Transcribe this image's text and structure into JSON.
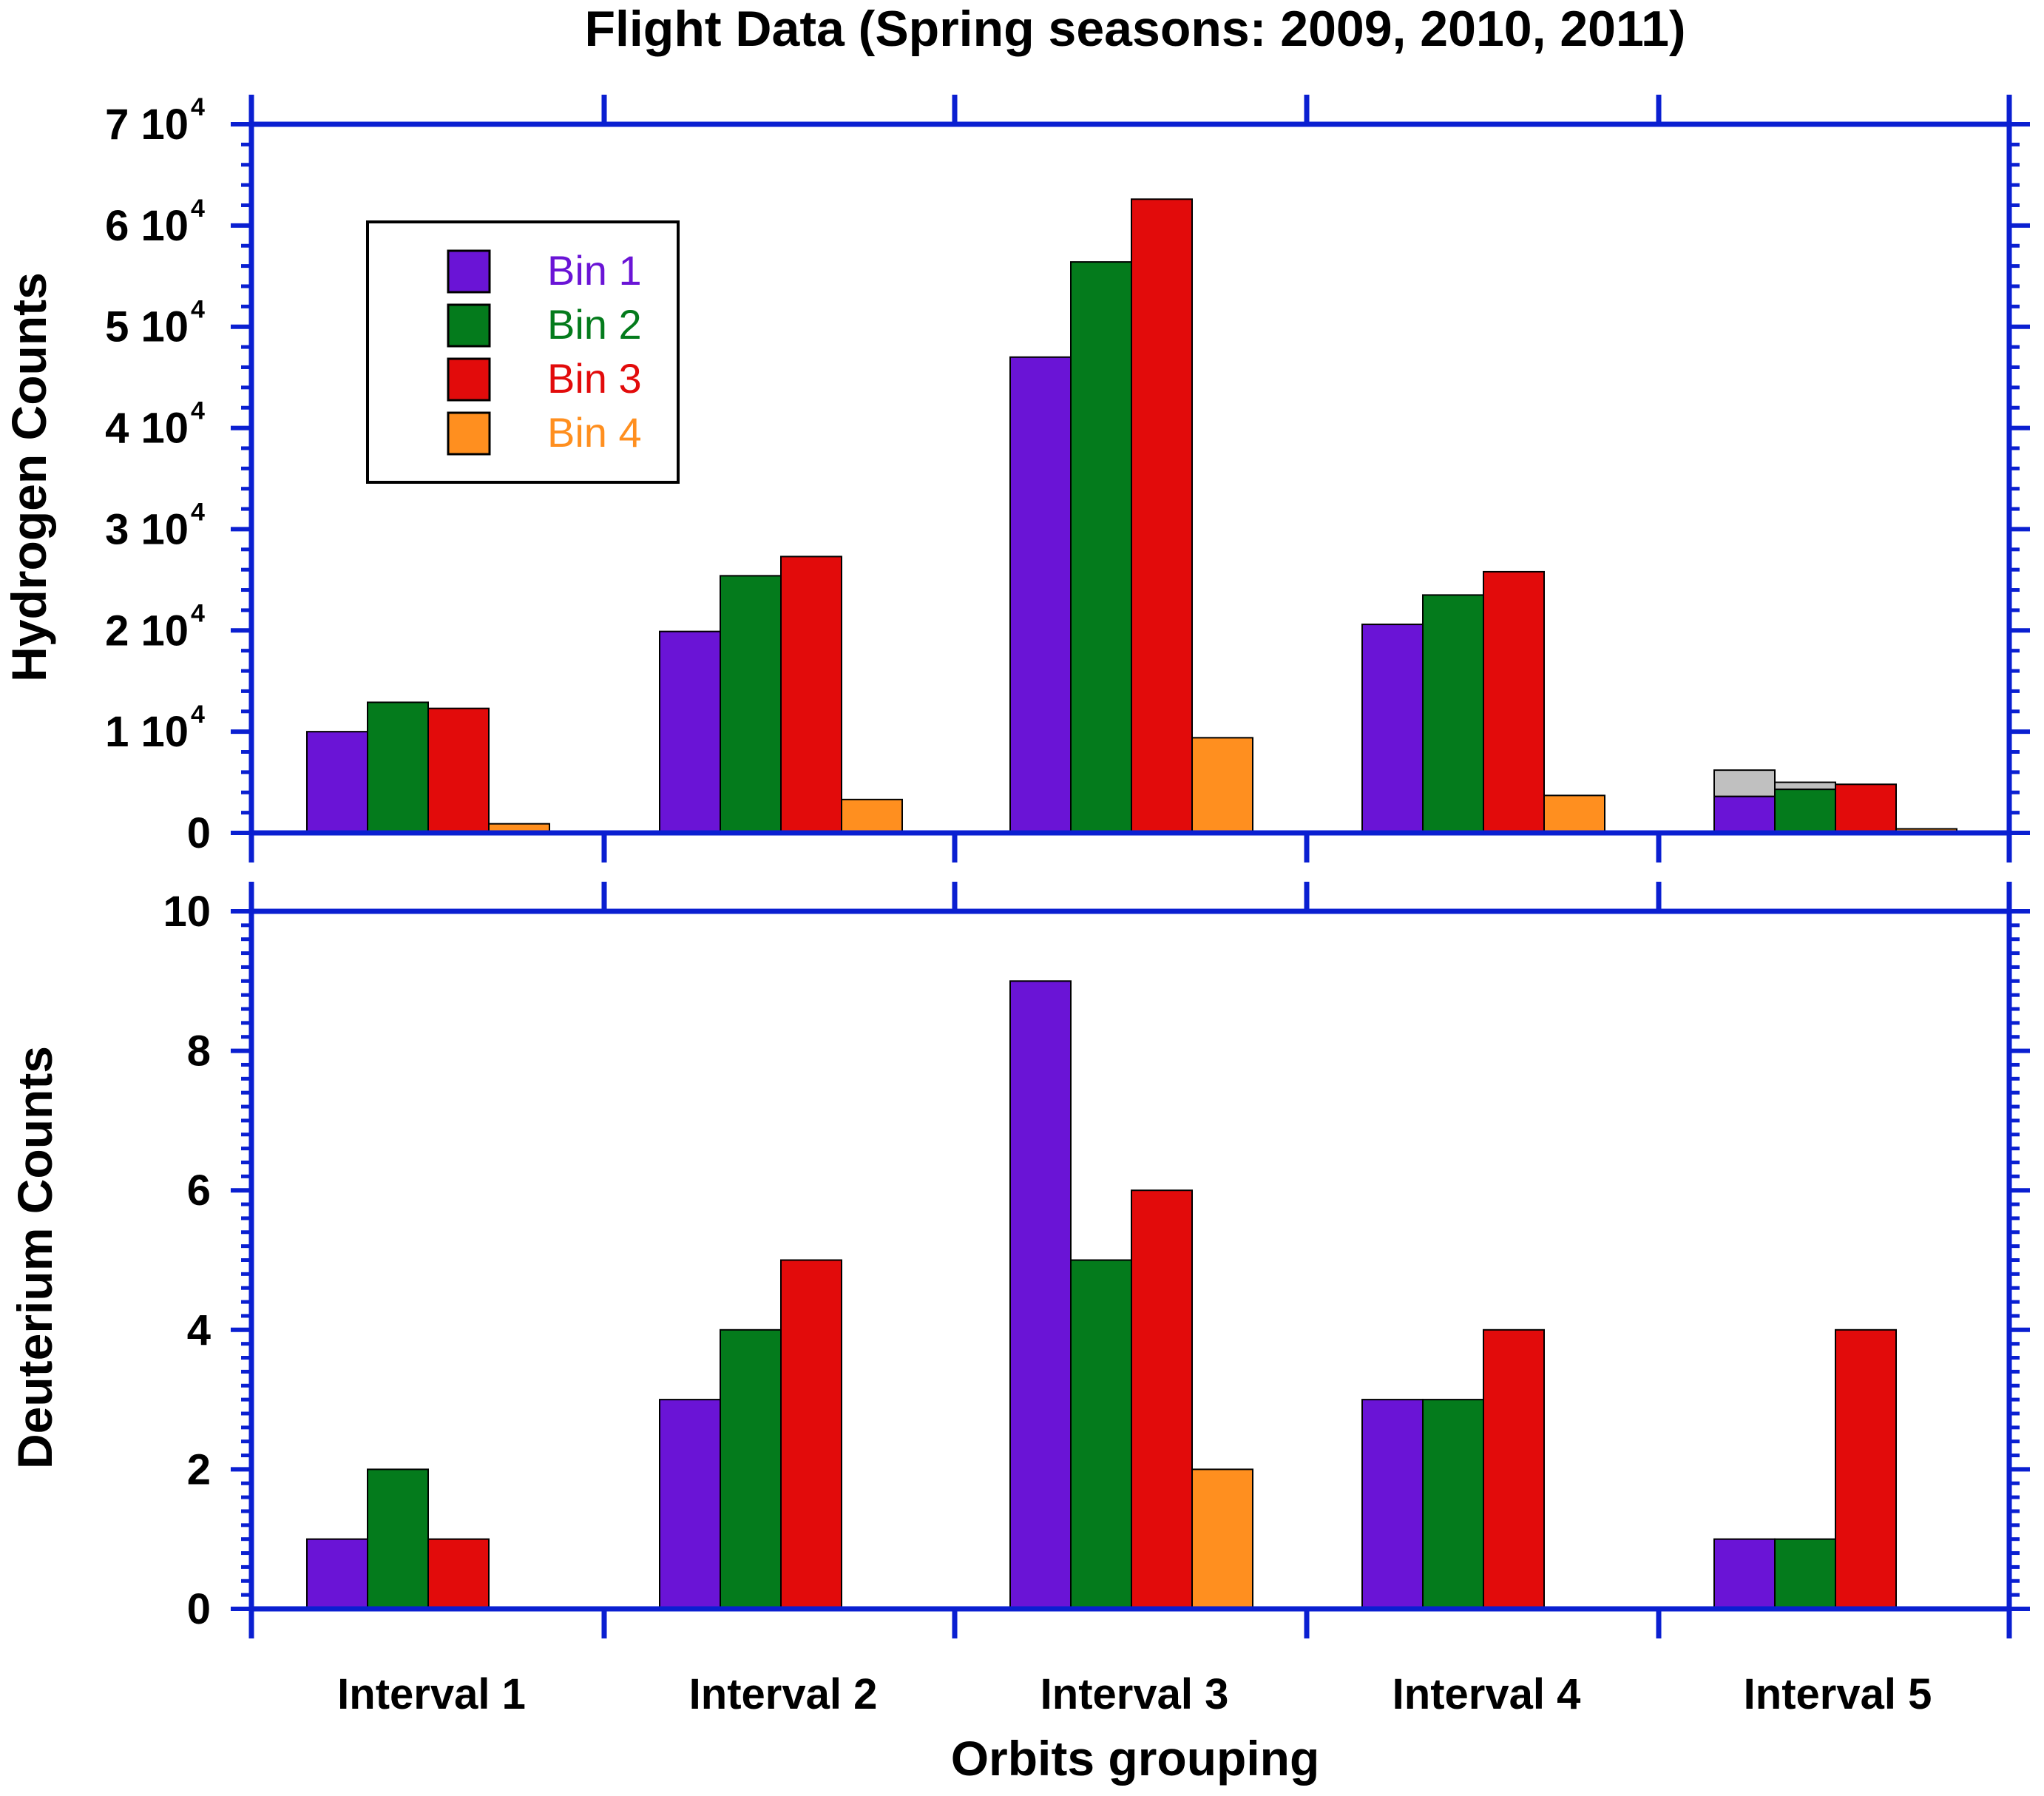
{
  "chart_data": [
    {
      "type": "bar",
      "panel": "top",
      "title": "Flight Data (Spring seasons: 2009, 2010, 2011)",
      "xlabel": "",
      "ylabel": "Hydrogen Counts",
      "categories": [
        "Interval 1",
        "Interval 2",
        "Interval 3",
        "Interval 4",
        "Interval 5"
      ],
      "ylim": [
        0,
        70000
      ],
      "yticks": [
        {
          "value": 0,
          "mantissa": "0",
          "exponent": ""
        },
        {
          "value": 10000,
          "mantissa": "1 10",
          "exponent": "4"
        },
        {
          "value": 20000,
          "mantissa": "2 10",
          "exponent": "4"
        },
        {
          "value": 30000,
          "mantissa": "3 10",
          "exponent": "4"
        },
        {
          "value": 40000,
          "mantissa": "4 10",
          "exponent": "4"
        },
        {
          "value": 50000,
          "mantissa": "5 10",
          "exponent": "4"
        },
        {
          "value": 60000,
          "mantissa": "6 10",
          "exponent": "4"
        },
        {
          "value": 70000,
          "mantissa": "7 10",
          "exponent": "4"
        }
      ],
      "series": [
        {
          "name": "Bin 1",
          "color": "#6a14d6",
          "values": [
            10000,
            19900,
            47000,
            20600,
            3600
          ]
        },
        {
          "name": "Bin 2",
          "color": "#047b1c",
          "values": [
            12900,
            25400,
            56400,
            23500,
            4300
          ]
        },
        {
          "name": "Bin 3",
          "color": "#e20b0b",
          "values": [
            12300,
            27300,
            62600,
            25800,
            4800
          ]
        },
        {
          "name": "Bin 4",
          "color": "#ff8f1f",
          "values": [
            900,
            3300,
            9400,
            3700,
            400
          ]
        }
      ],
      "overlay_series": {
        "color": "#c0c0c0",
        "note": "grey extensions shown only at Interval 5",
        "values": [
          null,
          null,
          null,
          null,
          6200
        ],
        "values_bin2": [
          null,
          null,
          null,
          null,
          5000
        ]
      },
      "legend": {
        "placement": "top-left",
        "entries": [
          {
            "label": "Bin 1",
            "color": "#6a14d6"
          },
          {
            "label": "Bin 2",
            "color": "#047b1c"
          },
          {
            "label": "Bin 3",
            "color": "#e20b0b"
          },
          {
            "label": "Bin 4",
            "color": "#ff8f1f"
          }
        ]
      },
      "grid": false
    },
    {
      "type": "bar",
      "panel": "bottom",
      "title": "",
      "xlabel": "Orbits grouping",
      "ylabel": "Deuterium Counts",
      "categories": [
        "Interval 1",
        "Interval 2",
        "Interval 3",
        "Interval 4",
        "Interval 5"
      ],
      "ylim": [
        0,
        10
      ],
      "yticks": [
        {
          "value": 0,
          "label": "0"
        },
        {
          "value": 2,
          "label": "2"
        },
        {
          "value": 4,
          "label": "4"
        },
        {
          "value": 6,
          "label": "6"
        },
        {
          "value": 8,
          "label": "8"
        },
        {
          "value": 10,
          "label": "10"
        }
      ],
      "series": [
        {
          "name": "Bin 1",
          "color": "#6a14d6",
          "values": [
            1,
            3,
            9,
            3,
            1
          ]
        },
        {
          "name": "Bin 2",
          "color": "#047b1c",
          "values": [
            2,
            4,
            5,
            3,
            1
          ]
        },
        {
          "name": "Bin 3",
          "color": "#e20b0b",
          "values": [
            1,
            5,
            6,
            4,
            4
          ]
        },
        {
          "name": "Bin 4",
          "color": "#ff8f1f",
          "values": [
            0,
            0,
            2,
            0,
            0
          ]
        }
      ],
      "grid": false
    }
  ],
  "axis_color": "#0a1fd1"
}
